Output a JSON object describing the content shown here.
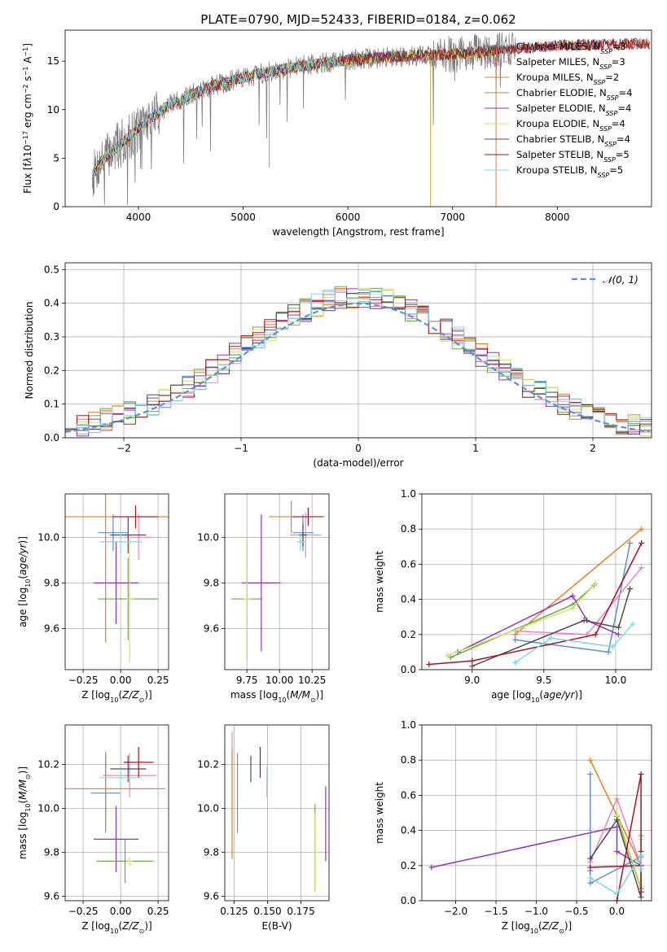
{
  "figure_title": "PLATE=0790, MJD=52433, FIBERID=0184, z=0.062",
  "colors": {
    "Chabrier MILES": "#5b8fd6",
    "Salpeter MILES": "#ea86be",
    "Kroupa MILES": "#e67e22",
    "Chabrier ELODIE": "#6aa84f",
    "Salpeter ELODIE": "#8e35b5",
    "Kroupa ELODIE": "#cfe35a",
    "Chabrier STELIB": "#4d4d4d",
    "Salpeter STELIB": "#a5141e",
    "Kroupa STELIB": "#7fd8dd",
    "data": "#808080",
    "normal": "#5b8fd6"
  },
  "chart_data": [
    {
      "id": "spectrum",
      "type": "line",
      "xlabel": "wavelength [Angstrom, rest frame]",
      "ylabel_html": "Flux [f<tspan font-style='italic'>λ</tspan>10<tspan baseline-shift='super' font-size='8'>−17</tspan> erg cm<tspan baseline-shift='super' font-size='8'>−2</tspan> s<tspan baseline-shift='super' font-size='8'>−1</tspan> A<tspan baseline-shift='super' font-size='8'>−1</tspan>]",
      "xlim": [
        3300,
        8900
      ],
      "ylim": [
        0,
        18.2
      ],
      "xticks": [
        4000,
        5000,
        6000,
        7000,
        8000
      ],
      "yticks": [
        0,
        5,
        10,
        15
      ],
      "data_range": [
        3560,
        7600
      ],
      "continuum": [
        [
          3560,
          3.2
        ],
        [
          3650,
          4.8
        ],
        [
          3800,
          6.2
        ],
        [
          3950,
          7.6
        ],
        [
          4100,
          9.0
        ],
        [
          4300,
          10.5
        ],
        [
          4500,
          11.5
        ],
        [
          4700,
          12.4
        ],
        [
          5000,
          13.3
        ],
        [
          5300,
          14.0
        ],
        [
          5600,
          14.6
        ],
        [
          6000,
          15.1
        ],
        [
          6500,
          15.5
        ],
        [
          7000,
          15.7
        ],
        [
          7600,
          16.3
        ],
        [
          8000,
          16.6
        ],
        [
          8800,
          16.8
        ]
      ],
      "legend": [
        {
          "label": "Chabrier MILES",
          "n": "3"
        },
        {
          "label": "Salpeter MILES",
          "n": "3"
        },
        {
          "label": "Kroupa MILES",
          "n": "2"
        },
        {
          "label": "Chabrier ELODIE",
          "n": "4"
        },
        {
          "label": "Salpeter ELODIE",
          "n": "4"
        },
        {
          "label": "Kroupa ELODIE",
          "n": "4"
        },
        {
          "label": "Chabrier STELIB",
          "n": "4"
        },
        {
          "label": "Salpeter STELIB",
          "n": "5"
        },
        {
          "label": "Kroupa STELIB",
          "n": "5"
        }
      ],
      "legend_n_prefix": "N",
      "legend_n_sub": "SSP"
    },
    {
      "id": "residuals",
      "type": "histogram",
      "xlabel": "(data-model)/error",
      "ylabel": "Normed distribution",
      "xlim": [
        -2.5,
        2.5
      ],
      "ylim": [
        0,
        0.52
      ],
      "xticks": [
        -2,
        -1,
        0,
        1,
        2
      ],
      "xtick_labels": [
        "−2",
        "−1",
        "0",
        "1",
        "2"
      ],
      "yticks": [
        0,
        0.1,
        0.2,
        0.3,
        0.4,
        0.5
      ],
      "ytick_labels": [
        "0.0",
        "0.1",
        "0.2",
        "0.3",
        "0.4",
        "0.5"
      ],
      "bin_width": 0.1,
      "legend_label": "𝒩(0, 1)",
      "grid": true
    },
    {
      "id": "age_Z",
      "type": "errorbar",
      "xlabel_html": "Z [log<tspan baseline-shift='sub' font-size='8'>10</tspan>(<tspan font-style='italic'>Z/Z</tspan><tspan baseline-shift='sub' font-size='8'>⊙</tspan>)]",
      "ylabel_html": "age  [log<tspan baseline-shift='sub' font-size='8'>10</tspan>(<tspan font-style='italic'>age/yr</tspan>)]",
      "xlim": [
        -0.37,
        0.32
      ],
      "ylim": [
        9.42,
        10.19
      ],
      "xticks": [
        -0.25,
        0.0,
        0.25
      ],
      "xtick_labels": [
        "−0.25",
        "0.00",
        "0.25"
      ],
      "yticks": [
        9.6,
        9.8,
        10.0
      ],
      "ytick_labels": [
        "9.6",
        "9.8",
        "10.0"
      ],
      "grid": true,
      "points": [
        {
          "s": "Chabrier MILES",
          "x": -0.05,
          "xe": 0.1,
          "y": 10.02,
          "ye": 0.08
        },
        {
          "s": "Salpeter MILES",
          "x": 0.12,
          "xe": 0.09,
          "y": 10.0,
          "ye": 0.1
        },
        {
          "s": "Kroupa MILES",
          "x": -0.1,
          "xe": 0.42,
          "y": 10.09,
          "ye": 0.55
        },
        {
          "s": "Chabrier ELODIE",
          "x": 0.05,
          "xe": 0.2,
          "y": 9.73,
          "ye": 0.18
        },
        {
          "s": "Salpeter ELODIE",
          "x": -0.03,
          "xe": 0.15,
          "y": 9.8,
          "ye": 0.18
        },
        {
          "s": "Kroupa ELODIE",
          "x": 0.06,
          "xe": 0.02,
          "y": 9.73,
          "ye": 0.28
        },
        {
          "s": "Chabrier STELIB",
          "x": 0.05,
          "xe": 0.12,
          "y": 10.01,
          "ye": 0.08
        },
        {
          "s": "Salpeter STELIB",
          "x": 0.1,
          "xe": 0.15,
          "y": 10.09,
          "ye": 0.05
        },
        {
          "s": "Kroupa STELIB",
          "x": 0.0,
          "xe": 0.14,
          "y": 9.98,
          "ye": 0.06
        }
      ]
    },
    {
      "id": "age_mass",
      "type": "errorbar",
      "xlabel_html": "mass [log<tspan baseline-shift='sub' font-size='8'>10</tspan>(<tspan font-style='italic'>M/M</tspan><tspan baseline-shift='sub' font-size='8'>⊙</tspan>)]",
      "xlim": [
        9.58,
        10.38
      ],
      "ylim": [
        9.42,
        10.19
      ],
      "xticks": [
        9.75,
        10.0,
        10.25
      ],
      "xtick_labels": [
        "9.75",
        "10.00",
        "10.25"
      ],
      "yticks": [
        9.6,
        9.8,
        10.0
      ],
      "ytick_labels": [
        "9.6",
        "9.8",
        "10.0"
      ],
      "grid": true,
      "points": [
        {
          "s": "Chabrier MILES",
          "x": 10.18,
          "xe": 0.08,
          "y": 10.02,
          "ye": 0.08
        },
        {
          "s": "Salpeter MILES",
          "x": 10.2,
          "xe": 0.12,
          "y": 10.01,
          "ye": 0.1
        },
        {
          "s": "Kroupa MILES",
          "x": 10.09,
          "xe": 0.17,
          "y": 10.09,
          "ye": 0.07
        },
        {
          "s": "Chabrier ELODIE",
          "x": 9.75,
          "xe": 0.12,
          "y": 9.73,
          "ye": 0.27
        },
        {
          "s": "Salpeter ELODIE",
          "x": 9.86,
          "xe": 0.15,
          "y": 9.8,
          "ye": 0.3
        },
        {
          "s": "Kroupa ELODIE",
          "x": 9.75,
          "xe": 0.02,
          "y": 9.73,
          "ye": 0.27
        },
        {
          "s": "Chabrier STELIB",
          "x": 10.18,
          "xe": 0.03,
          "y": 10.01,
          "ye": 0.05
        },
        {
          "s": "Salpeter STELIB",
          "x": 10.22,
          "xe": 0.12,
          "y": 10.09,
          "ye": 0.04
        },
        {
          "s": "Kroupa STELIB",
          "x": 10.16,
          "xe": 0.03,
          "y": 9.98,
          "ye": 0.04
        }
      ]
    },
    {
      "id": "weight_age",
      "type": "line",
      "xlabel_html": "age  [log<tspan baseline-shift='sub' font-size='8'>10</tspan>(<tspan font-style='italic'>age/yr</tspan>)]",
      "ylabel": "mass weight",
      "xlim": [
        8.65,
        10.25
      ],
      "ylim": [
        0,
        1.0
      ],
      "xticks": [
        9.0,
        9.5,
        10.0
      ],
      "xtick_labels": [
        "9.0",
        "9.5",
        "10.0"
      ],
      "yticks": [
        0,
        0.2,
        0.4,
        0.6,
        0.8,
        1.0
      ],
      "ytick_labels": [
        "0.0",
        "0.2",
        "0.4",
        "0.6",
        "0.8",
        "1.0"
      ],
      "grid": true,
      "series": [
        {
          "s": "Kroupa MILES",
          "points": [
            [
              9.3,
              0.2
            ],
            [
              10.18,
              0.8
            ]
          ]
        },
        {
          "s": "Chabrier MILES",
          "points": [
            [
              9.3,
              0.17
            ],
            [
              9.95,
              0.1
            ],
            [
              10.1,
              0.72
            ]
          ]
        },
        {
          "s": "Salpeter MILES",
          "points": [
            [
              9.3,
              0.22
            ],
            [
              9.8,
              0.2
            ],
            [
              10.18,
              0.58
            ]
          ]
        },
        {
          "s": "Chabrier ELODIE",
          "points": [
            [
              8.85,
              0.07
            ],
            [
              9.7,
              0.37
            ],
            [
              9.85,
              0.48
            ]
          ]
        },
        {
          "s": "Salpeter ELODIE",
          "points": [
            [
              8.9,
              0.1
            ],
            [
              9.7,
              0.42
            ],
            [
              9.8,
              0.28
            ],
            [
              10.02,
              0.2
            ]
          ]
        },
        {
          "s": "Kroupa ELODIE",
          "points": [
            [
              8.83,
              0.08
            ],
            [
              9.7,
              0.35
            ],
            [
              9.86,
              0.49
            ]
          ]
        },
        {
          "s": "Chabrier STELIB",
          "points": [
            [
              9.0,
              0.02
            ],
            [
              9.78,
              0.28
            ],
            [
              10.02,
              0.24
            ],
            [
              10.1,
              0.46
            ]
          ]
        },
        {
          "s": "Salpeter STELIB",
          "points": [
            [
              8.7,
              0.03
            ],
            [
              9.0,
              0.05
            ],
            [
              9.86,
              0.2
            ],
            [
              10.18,
              0.72
            ]
          ]
        },
        {
          "s": "Kroupa STELIB",
          "points": [
            [
              9.3,
              0.04
            ],
            [
              9.55,
              0.18
            ],
            [
              9.98,
              0.13
            ],
            [
              10.12,
              0.26
            ]
          ]
        }
      ]
    },
    {
      "id": "mass_Z",
      "type": "errorbar",
      "xlabel_html": "Z [log<tspan baseline-shift='sub' font-size='8'>10</tspan>(<tspan font-style='italic'>Z/Z</tspan><tspan baseline-shift='sub' font-size='8'>⊙</tspan>)]",
      "ylabel_html": "mass [log<tspan baseline-shift='sub' font-size='8'>10</tspan>(<tspan font-style='italic'>M/M</tspan><tspan baseline-shift='sub' font-size='8'>⊙</tspan>)]",
      "xlim": [
        -0.37,
        0.32
      ],
      "ylim": [
        9.58,
        10.38
      ],
      "xticks": [
        -0.25,
        0.0,
        0.25
      ],
      "xtick_labels": [
        "−0.25",
        "0.00",
        "0.25"
      ],
      "yticks": [
        9.6,
        9.8,
        10.0,
        10.2
      ],
      "ytick_labels": [
        "9.6",
        "9.8",
        "10.0",
        "10.2"
      ],
      "grid": true,
      "points": [
        {
          "s": "Chabrier MILES",
          "x": -0.1,
          "xe": 0.1,
          "y": 10.07,
          "ye": 0.18
        },
        {
          "s": "Salpeter MILES",
          "x": 0.06,
          "xe": 0.18,
          "y": 10.15,
          "ye": 0.1
        },
        {
          "s": "Kroupa MILES",
          "x": -0.1,
          "xe": 0.4,
          "y": 10.09,
          "ye": 0.17
        },
        {
          "s": "Chabrier ELODIE",
          "x": 0.03,
          "xe": 0.19,
          "y": 9.76,
          "ye": 0.1
        },
        {
          "s": "Salpeter ELODIE",
          "x": -0.03,
          "xe": 0.15,
          "y": 9.86,
          "ye": 0.15
        },
        {
          "s": "Kroupa ELODIE",
          "x": 0.06,
          "xe": 0.02,
          "y": 9.76,
          "ye": 0.02
        },
        {
          "s": "Chabrier STELIB",
          "x": 0.05,
          "xe": 0.12,
          "y": 10.18,
          "ye": 0.06
        },
        {
          "s": "Salpeter STELIB",
          "x": 0.12,
          "xe": 0.1,
          "y": 10.21,
          "ye": 0.07
        },
        {
          "s": "Kroupa STELIB",
          "x": 0.0,
          "xe": 0.14,
          "y": 10.14,
          "ye": 0.04
        }
      ]
    },
    {
      "id": "mass_ebv",
      "type": "errorbar",
      "xlabel": "E(B-V)",
      "xlim": [
        0.118,
        0.196
      ],
      "ylim": [
        9.58,
        10.38
      ],
      "xticks": [
        0.125,
        0.15,
        0.175
      ],
      "xtick_labels": [
        "0.125",
        "0.150",
        "0.175"
      ],
      "yticks": [
        9.6,
        9.8,
        10.0,
        10.2
      ],
      "ytick_labels": [
        "9.6",
        "9.8",
        "10.0",
        "10.2"
      ],
      "grid": true,
      "points": [
        {
          "s": "Chabrier MILES",
          "x": 0.1275,
          "xe": 0,
          "y": 10.07,
          "ye": 0.18
        },
        {
          "s": "Salpeter MILES",
          "x": 0.1235,
          "xe": 0,
          "y": 10.15,
          "ye": 0.2
        },
        {
          "s": "Kroupa MILES",
          "x": 0.1235,
          "xe": 0,
          "y": 10.02,
          "ye": 0.25
        },
        {
          "s": "Chabrier ELODIE",
          "x": 0.1855,
          "xe": 0,
          "y": 9.82,
          "ye": 0.2
        },
        {
          "s": "Salpeter ELODIE",
          "x": 0.1935,
          "xe": 0,
          "y": 9.93,
          "ye": 0.17
        },
        {
          "s": "Kroupa ELODIE",
          "x": 0.1855,
          "xe": 0,
          "y": 9.8,
          "ye": 0.18
        },
        {
          "s": "Chabrier STELIB",
          "x": 0.1375,
          "xe": 0,
          "y": 10.18,
          "ye": 0.06
        },
        {
          "s": "Salpeter STELIB",
          "x": 0.1445,
          "xe": 0,
          "y": 10.21,
          "ye": 0.07
        },
        {
          "s": "Kroupa STELIB",
          "x": 0.1495,
          "xe": 0,
          "y": 10.12,
          "ye": 0.07
        }
      ]
    },
    {
      "id": "weight_Z",
      "type": "line",
      "xlabel_html": "Z [log<tspan baseline-shift='sub' font-size='8'>10</tspan>(<tspan font-style='italic'>Z/Z</tspan><tspan baseline-shift='sub' font-size='8'>⊙</tspan>)]",
      "ylabel": "mass weight",
      "xlim": [
        -2.42,
        0.43
      ],
      "ylim": [
        0,
        1.0
      ],
      "xticks": [
        -2.0,
        -1.5,
        -1.0,
        -0.5,
        0.0
      ],
      "xtick_labels": [
        "−2.0",
        "−1.5",
        "−1.0",
        "−0.5",
        "0.0"
      ],
      "yticks": [
        0,
        0.2,
        0.4,
        0.6,
        0.8,
        1.0
      ],
      "ytick_labels": [
        "0.0",
        "0.2",
        "0.4",
        "0.6",
        "0.8",
        "1.0"
      ],
      "grid": true,
      "series": [
        {
          "s": "Salpeter ELODIE",
          "points": [
            [
              -2.3,
              0.19
            ],
            [
              0.0,
              0.42
            ],
            [
              0.0,
              0.28
            ],
            [
              0.3,
              0.2
            ]
          ]
        },
        {
          "s": "Kroupa MILES",
          "points": [
            [
              -0.33,
              0.8
            ],
            [
              0.3,
              0.2
            ]
          ]
        },
        {
          "s": "Chabrier MILES",
          "points": [
            [
              -0.33,
              0.72
            ],
            [
              -0.33,
              0.17
            ],
            [
              -0.33,
              0.1
            ],
            [
              0.3,
              0.25
            ]
          ]
        },
        {
          "s": "Salpeter MILES",
          "points": [
            [
              -0.33,
              0.22
            ],
            [
              0.0,
              0.58
            ],
            [
              0.3,
              0.2
            ]
          ]
        },
        {
          "s": "Chabrier ELODIE",
          "points": [
            [
              0.0,
              0.48
            ],
            [
              0.3,
              0.07
            ],
            [
              0.3,
              0.37
            ]
          ]
        },
        {
          "s": "Kroupa ELODIE",
          "points": [
            [
              0.0,
              0.49
            ],
            [
              0.3,
              0.08
            ],
            [
              0.3,
              0.35
            ]
          ]
        },
        {
          "s": "Chabrier STELIB",
          "points": [
            [
              -0.33,
              0.24
            ],
            [
              0.0,
              0.46
            ],
            [
              0.3,
              0.02
            ],
            [
              0.3,
              0.28
            ]
          ]
        },
        {
          "s": "Salpeter STELIB",
          "points": [
            [
              0.0,
              0.0
            ],
            [
              0.3,
              0.72
            ],
            [
              0.3,
              0.05
            ],
            [
              0.3,
              0.2
            ],
            [
              -0.33,
              0.19
            ]
          ]
        },
        {
          "s": "Kroupa STELIB",
          "points": [
            [
              -0.33,
              0.13
            ],
            [
              0.0,
              0.04
            ],
            [
              0.3,
              0.26
            ],
            [
              0.3,
              0.18
            ]
          ]
        }
      ]
    }
  ]
}
